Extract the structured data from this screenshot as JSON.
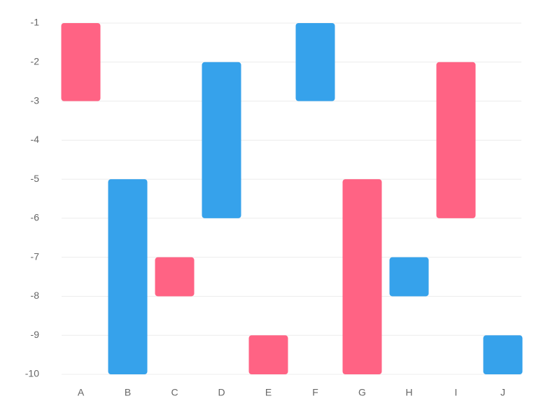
{
  "chart_data": {
    "type": "floating-bar",
    "categories": [
      "A",
      "B",
      "C",
      "D",
      "E",
      "F",
      "G",
      "H",
      "I",
      "J"
    ],
    "values": [
      [
        -1,
        -3
      ],
      [
        -5,
        -10
      ],
      [
        -7,
        -8
      ],
      [
        -2,
        -6
      ],
      [
        -9,
        -10
      ],
      [
        -1,
        -3
      ],
      [
        -5,
        -10
      ],
      [
        -7,
        -8
      ],
      [
        -2,
        -6
      ],
      [
        -9,
        -10
      ]
    ],
    "colors": [
      "#ff6384",
      "#36a2eb",
      "#ff6384",
      "#36a2eb",
      "#ff6384",
      "#36a2eb",
      "#ff6384",
      "#36a2eb",
      "#ff6384",
      "#36a2eb"
    ],
    "ylim": [
      -10,
      -1
    ],
    "yticks": [
      -1,
      -2,
      -3,
      -4,
      -5,
      -6,
      -7,
      -8,
      -9,
      -10
    ],
    "grid": true
  }
}
